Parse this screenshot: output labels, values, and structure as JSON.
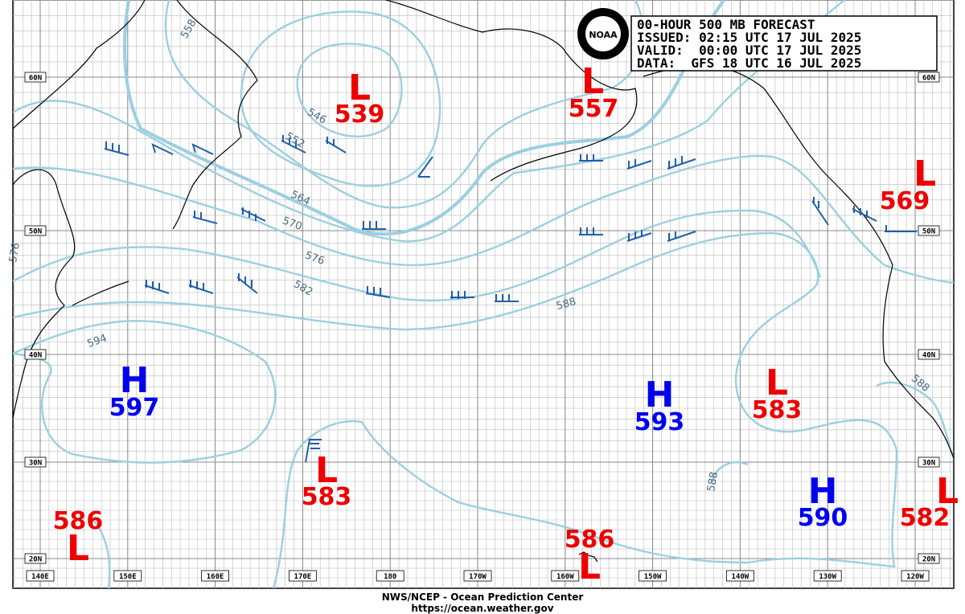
{
  "header": {
    "lines": [
      "00-HOUR 500 MB FORECAST",
      "ISSUED: 02:15 UTC 17 JUL 2025",
      "VALID:  00:00 UTC 17 JUL 2025",
      "DATA:  GFS 18 UTC 16 JUL 2025"
    ],
    "logo": "NOAA"
  },
  "centers": [
    {
      "symbol": "L",
      "value": "539"
    },
    {
      "symbol": "L",
      "value": "557"
    },
    {
      "symbol": "L",
      "value": "569"
    },
    {
      "symbol": "H",
      "value": "597"
    },
    {
      "symbol": "L",
      "value": "583"
    },
    {
      "symbol": "H",
      "value": "593"
    },
    {
      "symbol": "L",
      "value": "583"
    },
    {
      "symbol": "H",
      "value": "590"
    },
    {
      "symbol": "L",
      "value": "582"
    },
    {
      "symbol": "L",
      "value": "586"
    },
    {
      "symbol": "L",
      "value": "586"
    }
  ],
  "contour_labels": [
    "558",
    "546",
    "552",
    "564",
    "570",
    "576",
    "582",
    "588",
    "594",
    "588",
    "588",
    "576"
  ],
  "lat_labels": [
    "60N",
    "50N",
    "40N",
    "30N",
    "20N"
  ],
  "lon_labels": [
    "140E",
    "150E",
    "160E",
    "170E",
    "180",
    "170W",
    "160W",
    "150W",
    "140W",
    "130W",
    "120W"
  ],
  "footer": [
    "NWS/NCEP - Ocean Prediction Center",
    "https://ocean.weather.gov"
  ]
}
